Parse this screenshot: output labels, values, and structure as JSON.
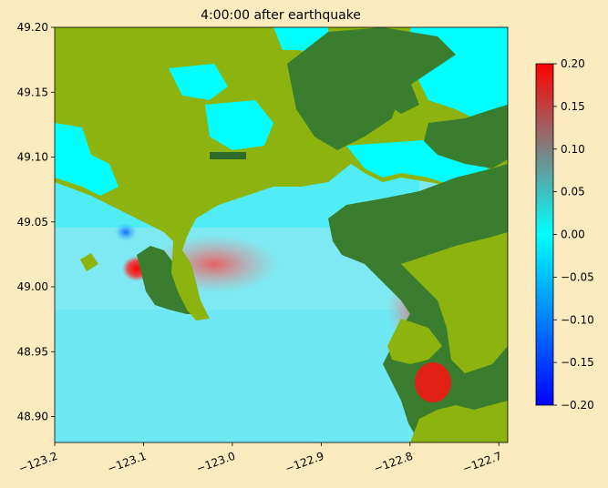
{
  "chart_data": {
    "type": "heatmap",
    "title": "4:00:00 after earthquake",
    "xlabel": "",
    "ylabel": "",
    "xlim": [
      -123.2,
      -122.69
    ],
    "ylim": [
      48.88,
      49.2
    ],
    "x_ticks": [
      -123.2,
      -123.1,
      -123.0,
      -122.9,
      -122.8,
      -122.7
    ],
    "x_tick_labels": [
      "−123.2",
      "−123.1",
      "−123.0",
      "−122.9",
      "−122.8",
      "−122.7"
    ],
    "y_ticks": [
      48.9,
      48.95,
      49.0,
      49.05,
      49.1,
      49.15,
      49.2
    ],
    "y_tick_labels": [
      "48.90",
      "48.95",
      "49.00",
      "49.05",
      "49.10",
      "49.15",
      "49.20"
    ],
    "colorbar": {
      "range": [
        -0.2,
        0.2
      ],
      "ticks": [
        -0.2,
        -0.15,
        -0.1,
        -0.05,
        0.0,
        0.05,
        0.1,
        0.15,
        0.2
      ],
      "tick_labels": [
        "−0.20",
        "−0.15",
        "−0.10",
        "−0.05",
        "0.00",
        "0.05",
        "0.10",
        "0.15",
        "0.20"
      ],
      "colors": [
        "#0000ff",
        "#00ffff",
        "#ff0000"
      ]
    },
    "colors": {
      "land_dark": "#3a7d2e",
      "land_light": "#8db30e",
      "water": "#7fe8f0",
      "positive": "#ff0000",
      "negative": "#0050ff"
    },
    "hotspots": [
      {
        "lon": -123.1,
        "lat": 49.012,
        "value": 0.2
      },
      {
        "lon": -123.0,
        "lat": 49.02,
        "value": 0.13
      },
      {
        "lon": -122.76,
        "lat": 48.925,
        "value": 0.2
      },
      {
        "lon": -122.78,
        "lat": 49.0,
        "value": 0.15
      },
      {
        "lon": -123.13,
        "lat": 49.04,
        "value": -0.06
      }
    ]
  }
}
